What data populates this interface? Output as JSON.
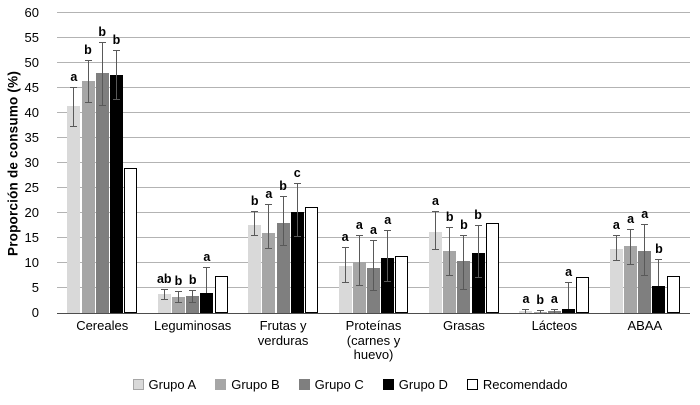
{
  "chart_data": {
    "type": "bar",
    "title": "",
    "xlabel": "",
    "ylabel": "Proporción de consumo (%)",
    "ylim": [
      0,
      60
    ],
    "yticks": [
      0,
      5,
      10,
      15,
      20,
      25,
      30,
      35,
      40,
      45,
      50,
      55,
      60
    ],
    "grid": true,
    "legend_position": "bottom",
    "error_bars": true,
    "categories": [
      "Cereales",
      "Leguminosas",
      "Frutas y verduras",
      "Proteínas (carnes y huevo)",
      "Grasas",
      "Lácteos",
      "ABAA"
    ],
    "series": [
      {
        "name": "Grupo A",
        "color": "#d9d9d9",
        "values": [
          41.4,
          3.8,
          17.7,
          9.5,
          16.3,
          0.4,
          12.9
        ],
        "err_hi": [
          45.3,
          4.8,
          20.4,
          13.3,
          20.4,
          0.9,
          15.6
        ],
        "err_lo": [
          37.5,
          2.8,
          15.6,
          6.3,
          12.9,
          0.1,
          10.6
        ],
        "letters": [
          "a",
          "ab",
          "b",
          "a",
          "a",
          "a",
          "a"
        ]
      },
      {
        "name": "Grupo B",
        "color": "#a6a6a6",
        "values": [
          46.4,
          3.3,
          16.1,
          10.3,
          12.5,
          0.3,
          13.4
        ],
        "err_hi": [
          50.7,
          4.5,
          21.9,
          15.6,
          17.3,
          0.6,
          16.9
        ],
        "err_lo": [
          42.3,
          2.2,
          13.0,
          5.6,
          7.6,
          0.1,
          9.9
        ],
        "letters": [
          "b",
          "b",
          "a",
          "a",
          "b",
          "b",
          "a"
        ]
      },
      {
        "name": "Grupo C",
        "color": "#7f7f7f",
        "values": [
          48.0,
          3.4,
          18.1,
          9.1,
          10.5,
          0.4,
          12.5
        ],
        "err_hi": [
          54.3,
          4.6,
          23.4,
          14.6,
          15.7,
          0.9,
          17.9
        ],
        "err_lo": [
          41.6,
          2.3,
          13.6,
          4.7,
          4.9,
          0.1,
          7.6
        ],
        "letters": [
          "b",
          "b",
          "b",
          "a",
          "b",
          "a",
          "a"
        ]
      },
      {
        "name": "Grupo D",
        "color": "#000000",
        "values": [
          47.7,
          4.0,
          20.3,
          11.1,
          12.1,
          0.9,
          5.4
        ],
        "err_hi": [
          52.6,
          9.3,
          26.1,
          16.7,
          17.6,
          6.2,
          10.8
        ],
        "err_lo": [
          42.9,
          4.0,
          15.4,
          6.4,
          7.3,
          0.9,
          5.4
        ],
        "letters": [
          "b",
          "a",
          "c",
          "a",
          "b",
          "a",
          "b"
        ]
      },
      {
        "name": "Recomendado",
        "color": "#ffffff",
        "border": "#000000",
        "values": [
          29.0,
          7.4,
          21.3,
          11.4,
          18.1,
          7.3,
          7.4
        ]
      }
    ],
    "colors": {
      "gridline": "#b3b3b3",
      "axis_line": "#4d4d4d",
      "error_bar": "#595959"
    }
  }
}
